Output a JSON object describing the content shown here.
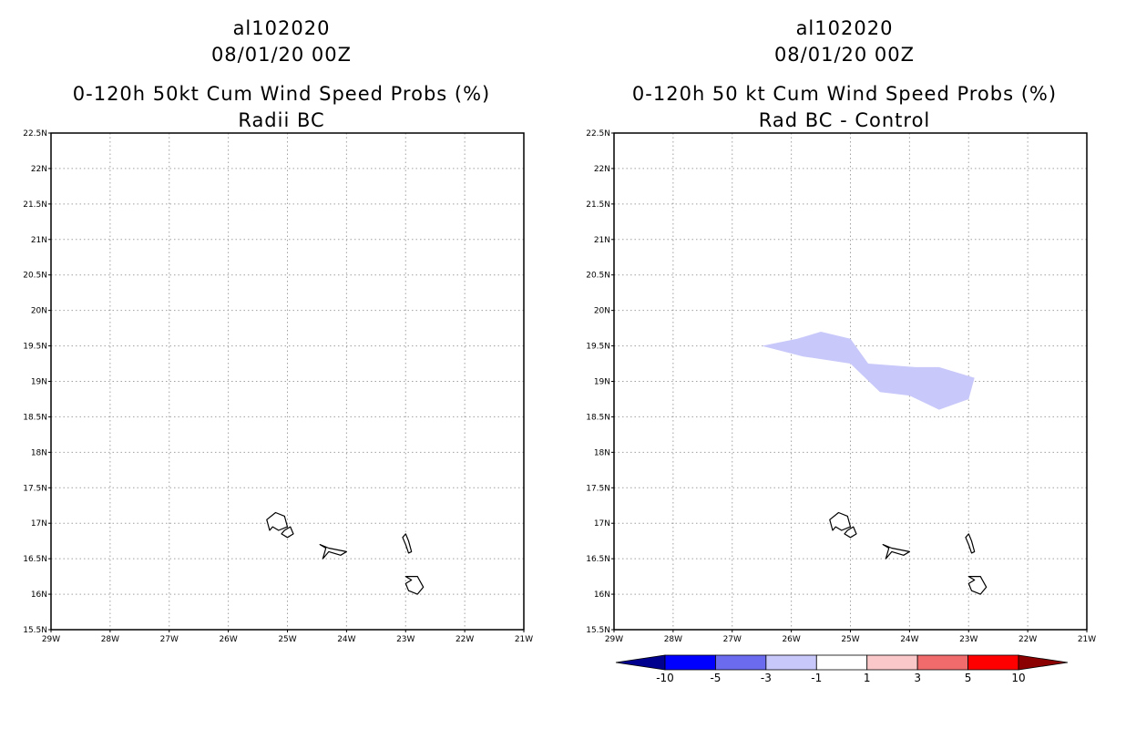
{
  "panels": [
    {
      "storm_id": "al102020",
      "datetime": "08/01/20 00Z",
      "title": "0-120h 50kt Cum Wind Speed Probs (%)",
      "subtitle": "Radii BC",
      "x_ticks": [
        "29W",
        "28W",
        "27W",
        "26W",
        "25W",
        "24W",
        "23W",
        "22W",
        "21W"
      ],
      "y_ticks": [
        "15.5N",
        "16N",
        "16.5N",
        "17N",
        "17.5N",
        "18N",
        "18.5N",
        "19N",
        "19.5N",
        "20N",
        "20.5N",
        "21N",
        "21.5N",
        "22N",
        "22.5N"
      ],
      "has_shading": false
    },
    {
      "storm_id": "al102020",
      "datetime": "08/01/20 00Z",
      "title": "0-120h 50 kt Cum Wind Speed Probs (%)",
      "subtitle": "Rad BC - Control",
      "x_ticks": [
        "29W",
        "28W",
        "27W",
        "26W",
        "25W",
        "24W",
        "23W",
        "22W",
        "21W"
      ],
      "y_ticks": [
        "15.5N",
        "16N",
        "16.5N",
        "17N",
        "17.5N",
        "18N",
        "18.5N",
        "19N",
        "19.5N",
        "20N",
        "20.5N",
        "21N",
        "21.5N",
        "22N",
        "22.5N"
      ],
      "has_shading": true,
      "shading_color": "#c8c8fa",
      "shaded_region_lonlat": [
        [
          -26.5,
          19.5
        ],
        [
          -25.9,
          19.6
        ],
        [
          -25.5,
          19.7
        ],
        [
          -25.0,
          19.6
        ],
        [
          -24.7,
          19.25
        ],
        [
          -23.9,
          19.2
        ],
        [
          -23.5,
          19.2
        ],
        [
          -22.9,
          19.05
        ],
        [
          -23.0,
          18.75
        ],
        [
          -23.5,
          18.6
        ],
        [
          -24.0,
          18.8
        ],
        [
          -24.5,
          18.85
        ],
        [
          -25.0,
          19.25
        ],
        [
          -25.8,
          19.35
        ]
      ]
    }
  ],
  "colorbar": {
    "labels": [
      "-10",
      "-5",
      "-3",
      "-1",
      "1",
      "3",
      "5",
      "10"
    ],
    "colors": [
      "#00008f",
      "#0000ff",
      "#6b6bf0",
      "#c8c8fa",
      "#ffffff",
      "#fac8c8",
      "#f06b6b",
      "#ff0000",
      "#8b0000"
    ]
  },
  "islands_lonlat": [
    [
      [
        -25.35,
        17.05
      ],
      [
        -25.2,
        17.15
      ],
      [
        -25.05,
        17.1
      ],
      [
        -25.0,
        16.95
      ],
      [
        -25.15,
        16.9
      ],
      [
        -25.25,
        16.95
      ],
      [
        -25.3,
        16.9
      ]
    ],
    [
      [
        -25.05,
        16.9
      ],
      [
        -24.95,
        16.95
      ],
      [
        -24.9,
        16.85
      ],
      [
        -25.0,
        16.8
      ],
      [
        -25.1,
        16.85
      ]
    ],
    [
      [
        -24.45,
        16.7
      ],
      [
        -24.3,
        16.65
      ],
      [
        -24.0,
        16.6
      ],
      [
        -24.1,
        16.55
      ],
      [
        -24.3,
        16.6
      ],
      [
        -24.4,
        16.5
      ],
      [
        -24.35,
        16.65
      ]
    ],
    [
      [
        -23.0,
        16.85
      ],
      [
        -22.95,
        16.75
      ],
      [
        -22.9,
        16.6
      ],
      [
        -22.95,
        16.58
      ],
      [
        -23.0,
        16.7
      ],
      [
        -23.05,
        16.8
      ]
    ],
    [
      [
        -23.0,
        16.25
      ],
      [
        -22.8,
        16.25
      ],
      [
        -22.7,
        16.1
      ],
      [
        -22.8,
        16.0
      ],
      [
        -22.95,
        16.05
      ],
      [
        -23.0,
        16.15
      ],
      [
        -22.9,
        16.2
      ]
    ]
  ]
}
